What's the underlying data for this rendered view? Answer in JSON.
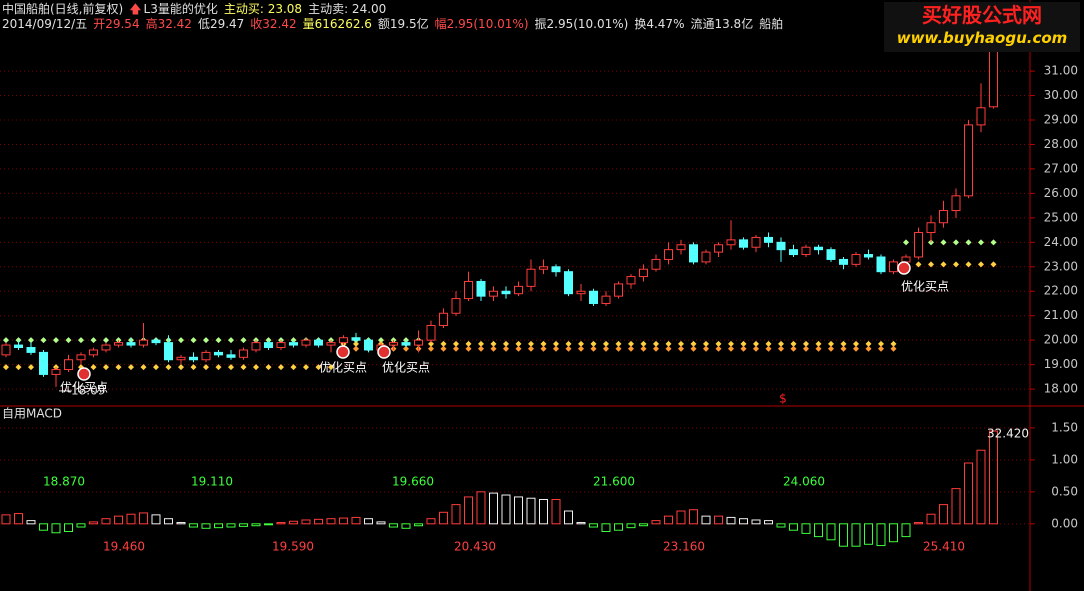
{
  "header": {
    "line1": [
      "中国船舶(日线,前复权)",
      "L3量能的优化",
      "主动买: 23.08",
      "主动卖: 24.00"
    ],
    "line2": [
      "2014/09/12/五",
      "开29.54",
      "高32.42",
      "低29.47",
      "收32.42",
      "量616262.6",
      "额19.5亿",
      "幅2.95(10.01%)",
      "振2.95(10.01%)",
      "换4.47%",
      "流通13.8亿",
      "船舶"
    ]
  },
  "watermark": {
    "logo": "买好股公式网",
    "url": "www.buyhaogu.com"
  },
  "chart_data": [
    {
      "type": "candlestick",
      "open": [
        19.4,
        19.8,
        19.7,
        19.5,
        18.6,
        18.8,
        19.2,
        19.4,
        19.6,
        19.8,
        19.9,
        19.8,
        20.0,
        19.9,
        19.2,
        19.3,
        19.2,
        19.5,
        19.4,
        19.3,
        19.6,
        19.9,
        19.7,
        19.9,
        19.8,
        20.0,
        19.8,
        19.9,
        20.1,
        20.0,
        19.6,
        19.8,
        19.9,
        19.8,
        20.0,
        20.6,
        21.1,
        21.7,
        22.4,
        21.8,
        22.0,
        21.9,
        22.2,
        22.9,
        23.0,
        22.8,
        21.9,
        22.0,
        21.5,
        21.8,
        22.3,
        22.6,
        22.9,
        23.3,
        23.7,
        23.9,
        23.2,
        23.6,
        23.9,
        24.1,
        23.8,
        24.2,
        24.0,
        23.7,
        23.5,
        23.8,
        23.7,
        23.3,
        23.1,
        23.5,
        23.4,
        22.8,
        23.2,
        23.4,
        24.4,
        24.8,
        25.3,
        25.9,
        28.8,
        29.54
      ],
      "high": [
        19.9,
        20.0,
        19.9,
        19.6,
        18.9,
        19.4,
        19.5,
        19.7,
        19.9,
        20.0,
        20.1,
        20.7,
        20.1,
        20.2,
        19.4,
        19.5,
        19.6,
        19.6,
        19.6,
        19.7,
        20.0,
        20.0,
        20.0,
        20.0,
        20.1,
        20.1,
        20.0,
        20.2,
        20.3,
        20.1,
        19.9,
        20.0,
        20.0,
        20.4,
        20.8,
        21.3,
        22.0,
        22.8,
        22.5,
        22.2,
        22.2,
        22.4,
        23.3,
        23.3,
        23.1,
        22.9,
        22.3,
        22.1,
        22.0,
        22.4,
        22.7,
        23.1,
        23.5,
        24.0,
        24.1,
        24.0,
        23.7,
        24.0,
        24.9,
        24.2,
        24.3,
        24.4,
        24.2,
        23.9,
        23.9,
        23.9,
        23.8,
        23.4,
        23.6,
        23.7,
        23.5,
        23.3,
        23.5,
        24.6,
        25.1,
        25.7,
        26.2,
        29.0,
        30.5,
        32.42
      ],
      "low": [
        19.3,
        19.6,
        19.4,
        18.5,
        18.09,
        18.7,
        19.0,
        19.3,
        19.5,
        19.7,
        19.7,
        19.7,
        19.8,
        19.1,
        19.0,
        19.1,
        19.1,
        19.3,
        19.2,
        19.2,
        19.5,
        19.6,
        19.6,
        19.7,
        19.7,
        19.7,
        19.5,
        19.8,
        19.9,
        19.5,
        19.5,
        19.6,
        19.7,
        19.5,
        19.9,
        20.5,
        21.0,
        21.6,
        21.6,
        21.6,
        21.7,
        21.8,
        22.0,
        22.7,
        22.6,
        21.8,
        21.6,
        21.4,
        21.4,
        21.7,
        22.1,
        22.4,
        22.8,
        23.1,
        23.5,
        23.1,
        23.1,
        23.4,
        23.7,
        23.7,
        23.6,
        23.8,
        23.2,
        23.4,
        23.4,
        23.5,
        23.2,
        22.9,
        23.0,
        23.3,
        22.7,
        22.7,
        23.0,
        23.3,
        24.0,
        24.6,
        25.0,
        25.8,
        28.5,
        29.47
      ],
      "close": [
        19.8,
        19.7,
        19.5,
        18.6,
        18.8,
        19.2,
        19.4,
        19.6,
        19.8,
        19.9,
        19.8,
        20.0,
        19.9,
        19.2,
        19.3,
        19.2,
        19.5,
        19.4,
        19.3,
        19.6,
        19.9,
        19.7,
        19.9,
        19.8,
        20.0,
        19.8,
        19.9,
        20.1,
        20.0,
        19.6,
        19.8,
        19.9,
        19.8,
        20.0,
        20.6,
        21.1,
        21.7,
        22.4,
        21.8,
        22.0,
        21.9,
        22.2,
        22.9,
        23.0,
        22.8,
        21.9,
        22.0,
        21.5,
        21.8,
        22.3,
        22.6,
        22.9,
        23.3,
        23.7,
        23.9,
        23.2,
        23.6,
        23.9,
        24.1,
        23.8,
        24.2,
        24.0,
        23.7,
        23.5,
        23.8,
        23.7,
        23.3,
        23.1,
        23.5,
        23.4,
        22.8,
        23.2,
        23.4,
        24.4,
        24.8,
        25.3,
        25.9,
        28.8,
        29.5,
        32.42
      ],
      "up_color": "#ff3c3c",
      "down_color": "#54ffff",
      "series": [
        {
          "color": "#b4ff8c",
          "values": [
            20.0,
            20.0,
            20.0,
            20.0,
            20.0,
            20.0,
            20.0,
            20.0,
            20.0,
            20.0,
            20.0,
            20.0,
            20.0,
            20.0,
            20.0,
            20.0,
            20.0,
            20.0,
            20.0,
            20.0,
            20.0,
            20.0,
            20.0,
            20.0,
            20.0,
            20.0,
            20.0,
            20.0,
            20.0,
            20.0,
            20.0,
            20.0,
            20.0,
            20.0,
            null,
            null,
            null,
            null,
            null,
            null,
            null,
            null,
            null,
            null,
            null,
            null,
            null,
            null,
            null,
            null,
            null,
            null,
            null,
            null,
            null,
            null,
            null,
            null,
            null,
            null,
            null,
            null,
            null,
            null,
            null,
            null,
            null,
            null,
            null,
            null,
            null,
            null,
            24.0,
            24.0,
            24.0,
            24.0,
            24.0,
            24.0,
            24.0,
            24.0
          ]
        },
        {
          "color": "#ffd040",
          "values": [
            18.9,
            18.9,
            18.9,
            18.9,
            18.9,
            18.9,
            18.9,
            18.9,
            18.9,
            18.9,
            18.9,
            18.9,
            18.9,
            18.9,
            18.9,
            18.9,
            18.9,
            18.9,
            18.9,
            18.9,
            18.9,
            18.9,
            18.9,
            18.9,
            18.9,
            18.9,
            18.9,
            19.85,
            19.85,
            19.85,
            19.85,
            19.85,
            19.85,
            19.85,
            19.85,
            19.85,
            19.85,
            19.85,
            19.85,
            19.85,
            19.85,
            19.85,
            19.85,
            19.85,
            19.85,
            19.85,
            19.85,
            19.85,
            19.85,
            19.85,
            19.85,
            19.85,
            19.85,
            19.85,
            19.85,
            19.85,
            19.85,
            19.85,
            19.85,
            19.85,
            19.85,
            19.85,
            19.85,
            19.85,
            19.85,
            19.85,
            19.85,
            19.85,
            19.85,
            19.85,
            19.85,
            19.85,
            23.1,
            23.1,
            23.1,
            23.1,
            23.1,
            23.1,
            23.1,
            23.1
          ]
        },
        {
          "color": "#ff9a30",
          "values": [
            null,
            null,
            null,
            null,
            null,
            null,
            null,
            null,
            null,
            null,
            null,
            null,
            null,
            null,
            null,
            null,
            null,
            null,
            null,
            null,
            null,
            null,
            null,
            null,
            null,
            null,
            null,
            19.65,
            19.65,
            19.65,
            19.65,
            19.65,
            19.65,
            19.65,
            19.65,
            19.65,
            19.65,
            19.65,
            19.65,
            19.65,
            19.65,
            19.65,
            19.65,
            19.65,
            19.65,
            19.65,
            19.65,
            19.65,
            19.65,
            19.65,
            19.65,
            19.65,
            19.65,
            19.65,
            19.65,
            19.65,
            19.65,
            19.65,
            19.65,
            19.65,
            19.65,
            19.65,
            19.65,
            19.65,
            19.65,
            19.65,
            19.65,
            19.65,
            19.65,
            19.65,
            19.65,
            19.65,
            null,
            null,
            null,
            null,
            null,
            null,
            null,
            null
          ]
        }
      ],
      "buy_signal_labels": [
        "优化买点",
        "优化买点",
        "优化买点",
        "优化买点"
      ],
      "signal_text": "$",
      "ylim": [
        17.35,
        33.17
      ],
      "yticks": [
        {
          "value": 18,
          "label": "18.00"
        },
        {
          "value": 19,
          "label": "19.00"
        },
        {
          "value": 20,
          "label": "20.00"
        },
        {
          "value": 21,
          "label": "21.00"
        },
        {
          "value": 22,
          "label": "22.00"
        },
        {
          "value": 23,
          "label": "23.00"
        },
        {
          "value": 24,
          "label": "24.00"
        },
        {
          "value": 25,
          "label": "25.00"
        },
        {
          "value": 26,
          "label": "26.00"
        },
        {
          "value": 27,
          "label": "27.00"
        },
        {
          "value": 28,
          "label": "28.00"
        },
        {
          "value": 29,
          "label": "29.00"
        },
        {
          "value": 30,
          "label": "30.00"
        },
        {
          "value": 31,
          "label": "31.00"
        }
      ],
      "grid": true
    },
    {
      "type": "bar",
      "title": "自用MACD",
      "values": [
        0.14,
        0.16,
        0.05,
        -0.1,
        -0.14,
        -0.12,
        -0.05,
        0.03,
        0.08,
        0.12,
        0.15,
        0.17,
        0.14,
        0.08,
        0.02,
        -0.05,
        -0.07,
        -0.06,
        -0.05,
        -0.04,
        -0.03,
        -0.01,
        0.02,
        0.04,
        0.06,
        0.07,
        0.08,
        0.09,
        0.1,
        0.08,
        0.03,
        -0.05,
        -0.07,
        -0.03,
        0.08,
        0.18,
        0.3,
        0.42,
        0.5,
        0.48,
        0.45,
        0.42,
        0.4,
        0.38,
        0.38,
        0.2,
        0.02,
        -0.05,
        -0.12,
        -0.1,
        -0.06,
        -0.03,
        0.05,
        0.12,
        0.2,
        0.22,
        0.12,
        0.12,
        0.1,
        0.08,
        0.06,
        0.05,
        -0.05,
        -0.1,
        -0.15,
        -0.2,
        -0.25,
        -0.35,
        -0.35,
        -0.32,
        -0.34,
        -0.28,
        -0.2,
        0.02,
        0.15,
        0.3,
        0.55,
        0.95,
        1.15,
        1.45
      ],
      "up_color": "#ff3c3c",
      "fall_color": "#f0f0f0",
      "down_color": "#3cff3c",
      "high_labels": [
        {
          "value": 18.87,
          "label": "18.870"
        },
        {
          "value": 19.11,
          "label": "19.110"
        },
        {
          "value": 19.66,
          "label": "19.660"
        },
        {
          "value": 21.6,
          "label": "21.600"
        },
        {
          "value": 24.06,
          "label": "24.060"
        }
      ],
      "low_labels": [
        {
          "value": 19.46,
          "label": "19.460"
        },
        {
          "value": 19.59,
          "label": "19.590"
        },
        {
          "value": 20.43,
          "label": "20.430"
        },
        {
          "value": 23.16,
          "label": "23.160"
        },
        {
          "value": 25.41,
          "label": "25.410"
        }
      ],
      "last_label": {
        "value": 32.42,
        "label": "32.420"
      },
      "ylim": [
        -1.05,
        1.81
      ],
      "yticks": [
        {
          "value": 0,
          "label": "0.00"
        },
        {
          "value": 0.5,
          "label": "0.50"
        },
        {
          "value": 1,
          "label": "1.00"
        },
        {
          "value": 1.5,
          "label": "1.50"
        }
      ],
      "grid": true
    }
  ]
}
